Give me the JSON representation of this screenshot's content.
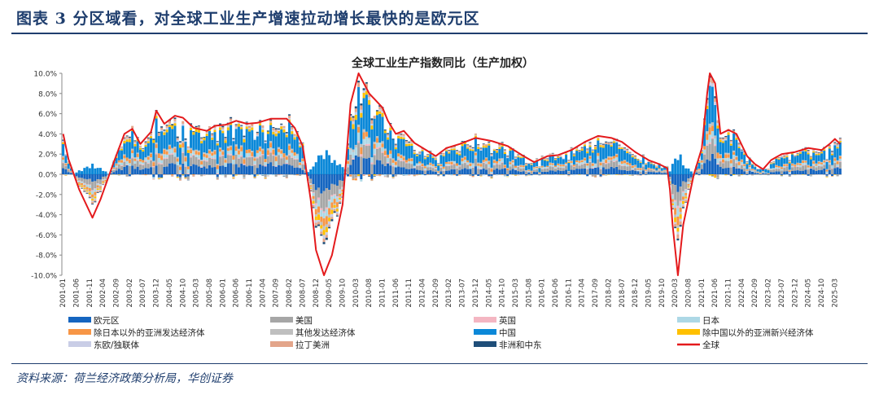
{
  "header": {
    "title": "图表 3    分区域看，对全球工业生产增速拉动增长最快的是欧元区"
  },
  "source": {
    "text": "资料来源：荷兰经济政策分析局，华创证券"
  },
  "chart_data": {
    "type": "bar",
    "stacked": true,
    "title": "全球工业生产指数同比（生产加权）",
    "xlabel": "",
    "ylabel": "",
    "ylim": [
      -10,
      10
    ],
    "yticks": [
      "-10.0%",
      "-8.0%",
      "-6.0%",
      "-4.0%",
      "-2.0%",
      "0.0%",
      "2.0%",
      "4.0%",
      "6.0%",
      "8.0%",
      "10.0%"
    ],
    "x_start": "2001-01",
    "x_end": "2025-05",
    "xticks": [
      "2001-01",
      "2001-06",
      "2001-11",
      "2002-04",
      "2002-09",
      "2003-02",
      "2003-07",
      "2003-12",
      "2004-05",
      "2004-10",
      "2005-03",
      "2005-08",
      "2006-01",
      "2006-06",
      "2006-11",
      "2007-04",
      "2007-09",
      "2008-02",
      "2008-07",
      "2008-12",
      "2009-05",
      "2009-10",
      "2010-03",
      "2010-08",
      "2011-01",
      "2011-06",
      "2011-11",
      "2012-04",
      "2012-09",
      "2013-02",
      "2013-07",
      "2013-12",
      "2014-05",
      "2014-10",
      "2015-03",
      "2015-08",
      "2016-01",
      "2016-06",
      "2016-11",
      "2017-04",
      "2017-09",
      "2018-02",
      "2018-07",
      "2018-12",
      "2019-05",
      "2019-10",
      "2020-03",
      "2020-08",
      "2021-01",
      "2021-06",
      "2021-11",
      "2022-04",
      "2022-09",
      "2023-02",
      "2023-07",
      "2023-12",
      "2024-05",
      "2024-10",
      "2025-03"
    ],
    "legend": {
      "placement": "bottom",
      "columns": 4
    },
    "series": [
      {
        "name": "欧元区",
        "color": "#1565c0",
        "share": 0.17,
        "floor": -3.0,
        "amp": 1.0
      },
      {
        "name": "美国",
        "color": "#a6a6a6",
        "share": 0.16,
        "floor": -3.3,
        "amp": 1.0
      },
      {
        "name": "英国",
        "color": "#f4b6c2",
        "share": 0.02,
        "floor": -0.4,
        "amp": 1.0
      },
      {
        "name": "日本",
        "color": "#add8e6",
        "share": 0.07,
        "floor": -1.8,
        "amp": 1.0
      },
      {
        "name": "除日本以外的亚洲发达经济体",
        "color": "#f79646",
        "share": 0.07,
        "floor": -0.5,
        "amp": 1.0
      },
      {
        "name": "其他发达经济体",
        "color": "#bfbfbf",
        "share": 0.03,
        "floor": -0.6,
        "amp": 1.0
      },
      {
        "name": "中国",
        "color": "#0b88d8",
        "share": 0.34,
        "floor": 0.0,
        "amp": 1.0
      },
      {
        "name": "除中国以外的亚洲新兴经济体",
        "color": "#ffc000",
        "share": 0.05,
        "floor": -0.3,
        "amp": 1.0
      },
      {
        "name": "东欧/独联体",
        "color": "#c9cde6",
        "share": 0.03,
        "floor": -0.3,
        "amp": 1.0
      },
      {
        "name": "拉丁美洲",
        "color": "#e3a58a",
        "share": 0.04,
        "floor": -0.3,
        "amp": 1.0
      },
      {
        "name": "非洲和中东",
        "color": "#1f4e79",
        "share": 0.02,
        "floor": -0.1,
        "amp": 1.0
      }
    ],
    "total": {
      "name": "全球",
      "color": "#e41a1c",
      "anchors": [
        [
          "2001-01",
          4.0
        ],
        [
          "2001-03",
          1.5
        ],
        [
          "2001-07",
          -1.5
        ],
        [
          "2001-12",
          -4.3
        ],
        [
          "2002-03",
          -2.5
        ],
        [
          "2002-08",
          1.2
        ],
        [
          "2002-12",
          4.0
        ],
        [
          "2003-03",
          4.5
        ],
        [
          "2003-06",
          3.0
        ],
        [
          "2003-10",
          4.2
        ],
        [
          "2003-12",
          6.3
        ],
        [
          "2004-03",
          5.0
        ],
        [
          "2004-07",
          5.8
        ],
        [
          "2004-10",
          5.6
        ],
        [
          "2005-02",
          4.6
        ],
        [
          "2005-07",
          4.3
        ],
        [
          "2005-10",
          4.8
        ],
        [
          "2006-02",
          4.9
        ],
        [
          "2006-06",
          5.3
        ],
        [
          "2006-10",
          5.0
        ],
        [
          "2007-02",
          5.1
        ],
        [
          "2007-07",
          5.5
        ],
        [
          "2008-01",
          5.5
        ],
        [
          "2008-04",
          4.6
        ],
        [
          "2008-07",
          2.8
        ],
        [
          "2008-10",
          -2.5
        ],
        [
          "2008-12",
          -7.5
        ],
        [
          "2009-03",
          -10.0
        ],
        [
          "2009-06",
          -8.0
        ],
        [
          "2009-10",
          -3.0
        ],
        [
          "2010-01",
          7.0
        ],
        [
          "2010-04",
          10.0
        ],
        [
          "2010-08",
          8.0
        ],
        [
          "2011-01",
          6.6
        ],
        [
          "2011-03",
          5.3
        ],
        [
          "2011-06",
          4.0
        ],
        [
          "2011-09",
          4.3
        ],
        [
          "2012-01",
          3.1
        ],
        [
          "2012-06",
          2.3
        ],
        [
          "2012-09",
          1.8
        ],
        [
          "2013-01",
          2.6
        ],
        [
          "2013-06",
          3.0
        ],
        [
          "2013-12",
          3.6
        ],
        [
          "2014-06",
          3.3
        ],
        [
          "2014-12",
          2.8
        ],
        [
          "2015-06",
          1.8
        ],
        [
          "2015-10",
          1.2
        ],
        [
          "2016-03",
          1.8
        ],
        [
          "2016-07",
          1.9
        ],
        [
          "2016-12",
          2.4
        ],
        [
          "2017-05",
          3.2
        ],
        [
          "2017-10",
          3.8
        ],
        [
          "2018-03",
          3.6
        ],
        [
          "2018-07",
          3.2
        ],
        [
          "2018-12",
          2.2
        ],
        [
          "2019-05",
          1.4
        ],
        [
          "2019-09",
          1.0
        ],
        [
          "2019-12",
          0.6
        ],
        [
          "2020-01",
          -1.5
        ],
        [
          "2020-02",
          -5.0
        ],
        [
          "2020-04",
          -10.0
        ],
        [
          "2020-06",
          -5.0
        ],
        [
          "2020-10",
          0.0
        ],
        [
          "2021-01",
          2.6
        ],
        [
          "2021-03",
          8.0
        ],
        [
          "2021-04",
          10.0
        ],
        [
          "2021-06",
          9.0
        ],
        [
          "2021-08",
          4.0
        ],
        [
          "2021-11",
          4.4
        ],
        [
          "2022-02",
          4.0
        ],
        [
          "2022-06",
          1.8
        ],
        [
          "2022-09",
          1.0
        ],
        [
          "2022-12",
          0.5
        ],
        [
          "2023-03",
          1.4
        ],
        [
          "2023-07",
          2.0
        ],
        [
          "2023-12",
          2.2
        ],
        [
          "2024-05",
          2.6
        ],
        [
          "2024-10",
          2.4
        ],
        [
          "2025-01",
          3.0
        ],
        [
          "2025-03",
          3.5
        ],
        [
          "2025-05",
          3.0
        ]
      ]
    }
  }
}
